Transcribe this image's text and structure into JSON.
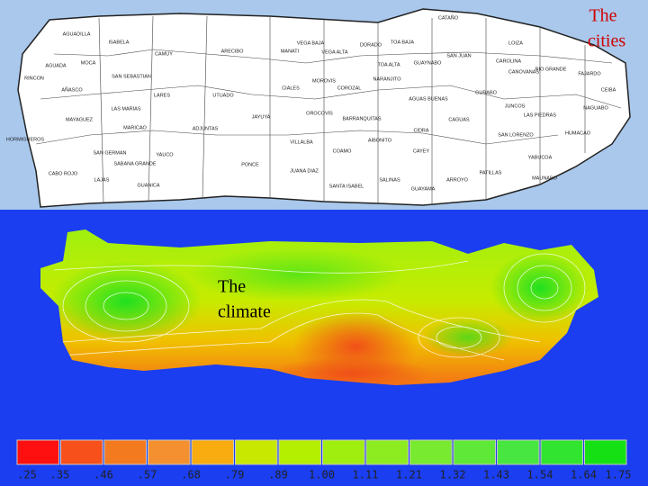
{
  "slide": {
    "cities_label_line1": "The",
    "cities_label_line2": "cities",
    "climate_label_line1": "The",
    "climate_label_line2": "climate"
  },
  "cities_map": {
    "municipalities": [
      "AGUADILLA",
      "ISABELA",
      "CAMUY",
      "ARECIBO",
      "MANATI",
      "VEGA BAJA",
      "VEGA ALTA",
      "DORADO",
      "TOA BAJA",
      "CATAÑO",
      "GUAYNABO",
      "SAN JUAN",
      "LOIZA",
      "CAROLINA",
      "CANOVANAS",
      "RIO GRANDE",
      "FAJARDO",
      "CEIBA",
      "NAGUABO",
      "AGUADA",
      "RINCON",
      "MOCA",
      "SAN SEBASTIAN",
      "AÑASCO",
      "LARES",
      "UTUADO",
      "CIALES",
      "MOROVIS",
      "COROZAL",
      "TOA ALTA",
      "NARANJITO",
      "AGUAS BUENAS",
      "GURABO",
      "JUNCOS",
      "CAGUAS",
      "LAS PIEDRAS",
      "HUMACAO",
      "MAYAGUEZ",
      "LAS MARIAS",
      "MARICAO",
      "ADJUNTAS",
      "JAYUYA",
      "OROCOVIS",
      "BARRANQUITAS",
      "CIDRA",
      "SAN LORENZO",
      "YABUCOA",
      "MAUNABO",
      "SAN GERMAN",
      "SABANA GRANDE",
      "YAUCO",
      "PONCE",
      "VILLALBA",
      "COAMO",
      "AIBONITO",
      "CAYEY",
      "JUANA DIAZ",
      "SANTA ISABEL",
      "SALINAS",
      "GUAYAMA",
      "ARROYO",
      "PATILLAS",
      "CABO ROJO",
      "LAJAS",
      "GUANICA",
      "HORMIGUEROS"
    ]
  },
  "climate_legend": {
    "colors": [
      "#ff1010",
      "#f8501a",
      "#f47a20",
      "#f49030",
      "#f8ac10",
      "#c8e800",
      "#b4ee00",
      "#a0ee10",
      "#8cec20",
      "#78ea30",
      "#60e838",
      "#48e640",
      "#30e430",
      "#14e014"
    ],
    "labels": [
      ".25",
      ".35",
      ".46",
      ".57",
      ".68",
      ".79",
      ".89",
      "1.00",
      "1.11",
      "1.21",
      "1.32",
      "1.43",
      "1.54",
      "1.64",
      "1.75"
    ]
  }
}
